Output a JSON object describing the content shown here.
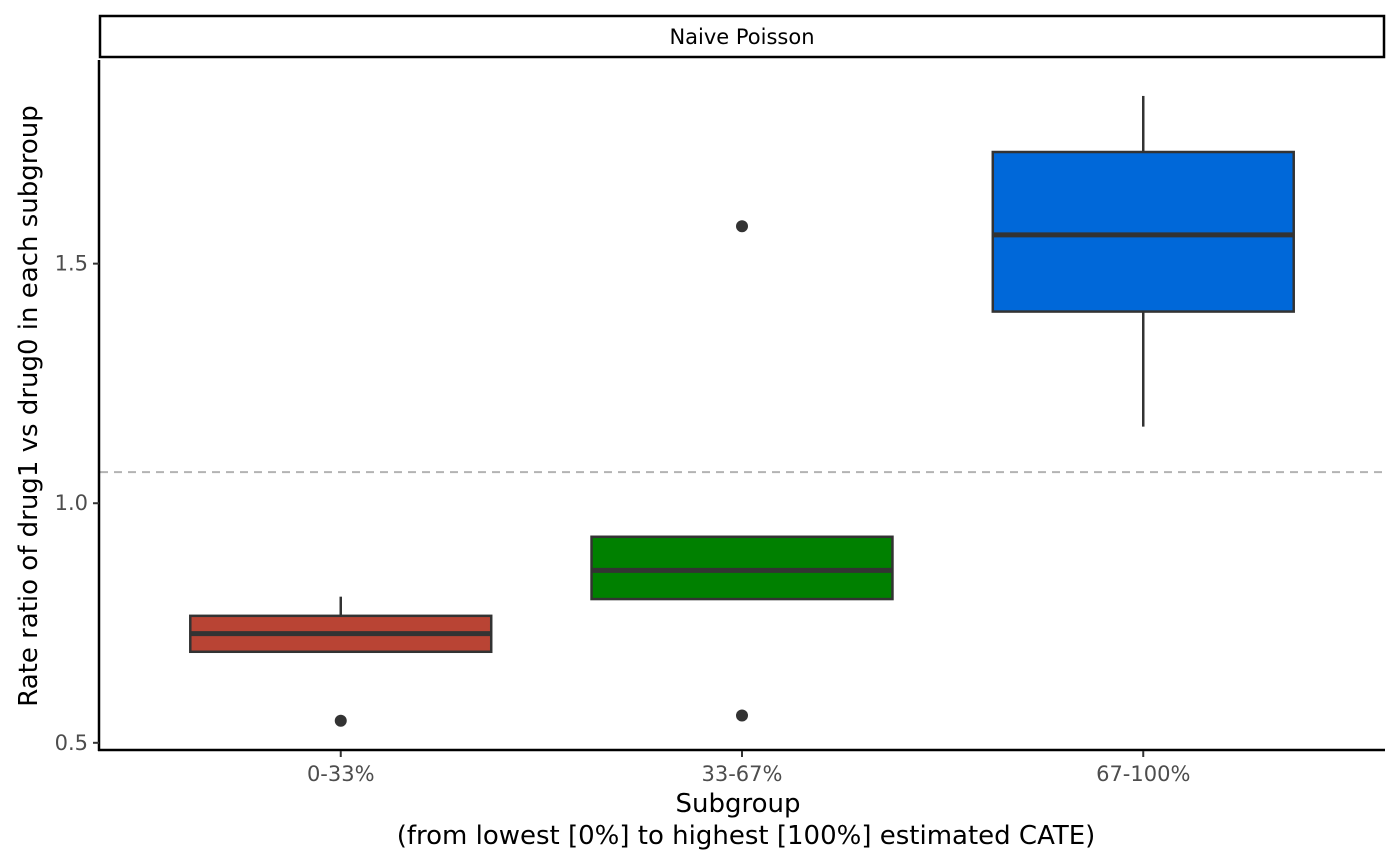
{
  "chart_data": {
    "type": "boxplot",
    "facet_title": "Naive Poisson",
    "xlabel_line1": "Subgroup",
    "xlabel_line2": "(from lowest [0%] to highest [100%] estimated CATE)",
    "ylabel": "Rate ratio of drug1 vs drug0 in each subgroup",
    "categories": [
      "0-33%",
      "33-67%",
      "67-100%"
    ],
    "yticks": [
      0.5,
      1.0,
      1.5
    ],
    "ytick_labels": [
      "0.5",
      "1.0",
      "1.5"
    ],
    "ylim": [
      0.485,
      1.925
    ],
    "reference_line": 1.065,
    "grid": false,
    "legend": "none",
    "boxes": [
      {
        "category": "0-33%",
        "whisker_low": 0.69,
        "q1": 0.69,
        "median": 0.728,
        "q3": 0.765,
        "whisker_high": 0.805,
        "outliers": [
          0.546
        ],
        "color": "#b94434"
      },
      {
        "category": "33-67%",
        "whisker_low": 0.8,
        "q1": 0.8,
        "median": 0.86,
        "q3": 0.93,
        "whisker_high": 0.93,
        "outliers": [
          1.578,
          0.557
        ],
        "color": "#008000"
      },
      {
        "category": "67-100%",
        "whisker_low": 1.16,
        "q1": 1.4,
        "median": 1.56,
        "q3": 1.733,
        "whisker_high": 1.85,
        "outliers": [],
        "color": "#0068d9"
      }
    ],
    "colors": {
      "outline": "#333333",
      "reference_line": "#b3b3b3",
      "axis": "#000000",
      "tick_text": "#4d4d4d"
    }
  }
}
